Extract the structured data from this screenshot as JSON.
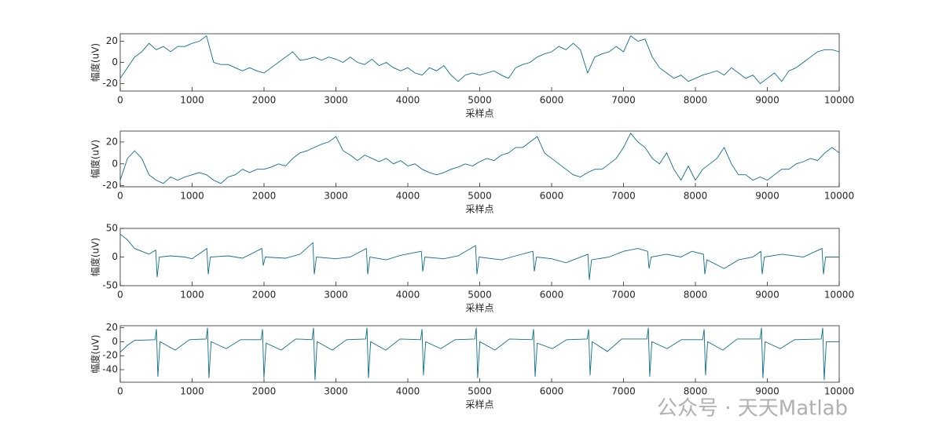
{
  "watermark": "公众号 · 天天Matlab",
  "chart_data": [
    {
      "type": "line",
      "xlabel": "采样点",
      "ylabel": "幅度(uV)",
      "color": "#0e6e8c",
      "xlim": [
        0,
        10000
      ],
      "xticks": [
        0,
        1000,
        2000,
        3000,
        4000,
        5000,
        6000,
        7000,
        8000,
        9000,
        10000
      ],
      "ylim": [
        -27,
        27
      ],
      "yticks": [
        -20,
        0,
        20
      ],
      "x": [
        0,
        100,
        200,
        300,
        400,
        500,
        600,
        700,
        800,
        900,
        1000,
        1100,
        1200,
        1300,
        1400,
        1500,
        1600,
        1700,
        1800,
        1900,
        2000,
        2100,
        2200,
        2300,
        2400,
        2500,
        2600,
        2700,
        2800,
        2900,
        3000,
        3100,
        3200,
        3300,
        3400,
        3500,
        3600,
        3700,
        3800,
        3900,
        4000,
        4100,
        4200,
        4300,
        4400,
        4500,
        4600,
        4700,
        4800,
        4900,
        5000,
        5100,
        5200,
        5300,
        5400,
        5500,
        5600,
        5700,
        5800,
        5900,
        6000,
        6100,
        6200,
        6300,
        6400,
        6500,
        6600,
        6700,
        6800,
        6900,
        7000,
        7100,
        7200,
        7300,
        7400,
        7500,
        7600,
        7700,
        7800,
        7900,
        8000,
        8100,
        8200,
        8300,
        8400,
        8500,
        8600,
        8700,
        8800,
        8900,
        9000,
        9100,
        9200,
        9300,
        9400,
        9500,
        9600,
        9700,
        9800,
        9900,
        10000
      ],
      "values": [
        -15,
        -5,
        5,
        10,
        18,
        12,
        15,
        10,
        15,
        15,
        18,
        20,
        25,
        0,
        -2,
        -2,
        -5,
        -8,
        -5,
        -8,
        -10,
        -5,
        0,
        5,
        10,
        2,
        3,
        5,
        2,
        5,
        3,
        0,
        5,
        0,
        -2,
        3,
        -3,
        0,
        -5,
        -8,
        -5,
        -10,
        -12,
        -5,
        -8,
        -3,
        -12,
        -18,
        -12,
        -10,
        -12,
        -10,
        -8,
        -12,
        -15,
        -5,
        -2,
        0,
        5,
        8,
        10,
        15,
        12,
        18,
        12,
        -10,
        5,
        8,
        10,
        15,
        10,
        25,
        20,
        22,
        5,
        -5,
        -10,
        -15,
        -12,
        -18,
        -15,
        -12,
        -10,
        -8,
        -12,
        -5,
        -10,
        -15,
        -12,
        -20,
        -15,
        -10,
        -18,
        -8,
        -5,
        0,
        5,
        10,
        12,
        12,
        10
      ]
    },
    {
      "type": "line",
      "xlabel": "采样点",
      "ylabel": "幅度(uV)",
      "color": "#0e6e8c",
      "xlim": [
        0,
        10000
      ],
      "xticks": [
        0,
        1000,
        2000,
        3000,
        4000,
        5000,
        6000,
        7000,
        8000,
        9000,
        10000
      ],
      "ylim": [
        -21,
        30
      ],
      "yticks": [
        -20,
        0,
        20
      ],
      "x": [
        0,
        100,
        200,
        300,
        400,
        500,
        600,
        700,
        800,
        900,
        1000,
        1100,
        1200,
        1300,
        1400,
        1500,
        1600,
        1700,
        1800,
        1900,
        2000,
        2100,
        2200,
        2300,
        2400,
        2500,
        2600,
        2700,
        2800,
        2900,
        3000,
        3100,
        3200,
        3300,
        3400,
        3500,
        3600,
        3700,
        3800,
        3900,
        4000,
        4100,
        4200,
        4300,
        4400,
        4500,
        4600,
        4700,
        4800,
        4900,
        5000,
        5100,
        5200,
        5300,
        5400,
        5500,
        5600,
        5700,
        5800,
        5900,
        6000,
        6100,
        6200,
        6300,
        6400,
        6500,
        6600,
        6700,
        6800,
        6900,
        7000,
        7100,
        7200,
        7300,
        7400,
        7500,
        7600,
        7700,
        7800,
        7900,
        8000,
        8100,
        8200,
        8300,
        8400,
        8500,
        8600,
        8700,
        8800,
        8900,
        9000,
        9100,
        9200,
        9300,
        9400,
        9500,
        9600,
        9700,
        9800,
        9900,
        10000
      ],
      "values": [
        -15,
        5,
        12,
        5,
        -10,
        -15,
        -18,
        -12,
        -15,
        -12,
        -10,
        -8,
        -10,
        -15,
        -18,
        -12,
        -10,
        -5,
        -8,
        -5,
        -5,
        -3,
        0,
        -2,
        5,
        10,
        12,
        15,
        18,
        20,
        25,
        12,
        8,
        3,
        8,
        5,
        2,
        5,
        0,
        3,
        -2,
        0,
        -5,
        -8,
        -10,
        -8,
        -5,
        -3,
        0,
        -2,
        2,
        5,
        3,
        8,
        10,
        15,
        15,
        20,
        25,
        10,
        5,
        0,
        -5,
        -10,
        -12,
        -8,
        -5,
        -5,
        0,
        5,
        15,
        28,
        20,
        15,
        5,
        0,
        10,
        -5,
        -15,
        -2,
        -15,
        -5,
        0,
        5,
        15,
        0,
        -10,
        -10,
        -15,
        -12,
        -15,
        -10,
        -5,
        -5,
        0,
        2,
        5,
        3,
        10,
        15,
        10
      ]
    },
    {
      "type": "line",
      "xlabel": "采样点",
      "ylabel": "幅度(uV)",
      "color": "#0e6e8c",
      "xlim": [
        0,
        10000
      ],
      "xticks": [
        0,
        1000,
        2000,
        3000,
        4000,
        5000,
        6000,
        7000,
        8000,
        9000,
        10000
      ],
      "ylim": [
        -50,
        50
      ],
      "yticks": [
        -50,
        0,
        50
      ],
      "x": [
        0,
        100,
        200,
        300,
        400,
        494,
        514,
        544,
        700,
        900,
        1000,
        1204,
        1224,
        1254,
        1500,
        1700,
        1969,
        1989,
        2019,
        2300,
        2500,
        2679,
        2699,
        2729,
        3000,
        3200,
        3423,
        3443,
        3473,
        3700,
        3900,
        4188,
        4208,
        4238,
        4500,
        4700,
        4942,
        4962,
        4992,
        5300,
        5500,
        5740,
        5760,
        5790,
        6000,
        6200,
        6505,
        6525,
        6555,
        6800,
        7000,
        7200,
        7335,
        7355,
        7385,
        7600,
        7800,
        7950,
        8111,
        8131,
        8161,
        8400,
        8600,
        8800,
        8909,
        8929,
        8959,
        9200,
        9500,
        9761,
        9781,
        9811,
        10000
      ],
      "values": [
        40,
        30,
        15,
        10,
        5,
        12,
        -35,
        0,
        2,
        0,
        -3,
        15,
        -30,
        0,
        2,
        -2,
        15,
        -15,
        0,
        -2,
        5,
        25,
        -30,
        0,
        -3,
        0,
        15,
        -30,
        0,
        -5,
        3,
        10,
        -25,
        0,
        -3,
        2,
        20,
        -30,
        0,
        -5,
        2,
        10,
        -25,
        0,
        -3,
        -10,
        5,
        -40,
        -5,
        0,
        10,
        15,
        10,
        -20,
        0,
        5,
        0,
        10,
        5,
        -30,
        -5,
        -20,
        -5,
        0,
        10,
        -30,
        0,
        5,
        0,
        15,
        -30,
        0,
        0
      ]
    },
    {
      "type": "line",
      "xlabel": "采样点",
      "ylabel": "幅度(uV)",
      "color": "#0e6e8c",
      "xlim": [
        0,
        10000
      ],
      "xticks": [
        0,
        1000,
        2000,
        3000,
        4000,
        5000,
        6000,
        7000,
        8000,
        9000,
        10000
      ],
      "ylim": [
        -58,
        23
      ],
      "yticks": [
        -40,
        -20,
        0,
        20
      ],
      "x": [
        0,
        100,
        200,
        484,
        504,
        524,
        554,
        764,
        964,
        1194,
        1214,
        1234,
        1264,
        1474,
        1674,
        1959,
        1979,
        1999,
        2029,
        2239,
        2439,
        2669,
        2689,
        2709,
        2739,
        2949,
        3149,
        3413,
        3433,
        3453,
        3483,
        3693,
        3893,
        4178,
        4198,
        4218,
        4248,
        4458,
        4658,
        4932,
        4952,
        4972,
        5002,
        5212,
        5412,
        5730,
        5750,
        5770,
        5800,
        6010,
        6210,
        6495,
        6515,
        6535,
        6565,
        6775,
        6975,
        7325,
        7345,
        7365,
        7395,
        7605,
        7805,
        8101,
        8121,
        8141,
        8171,
        8381,
        8581,
        8899,
        8919,
        8939,
        8969,
        9179,
        9379,
        9751,
        9771,
        9791,
        9821,
        10000
      ],
      "values": [
        -15,
        -5,
        2,
        3,
        18,
        -50,
        0,
        -12,
        3,
        4,
        20,
        -52,
        0,
        -10,
        3,
        3,
        18,
        -52,
        -2,
        -12,
        4,
        3,
        20,
        -55,
        0,
        -12,
        3,
        4,
        20,
        -52,
        0,
        -12,
        4,
        3,
        18,
        -48,
        0,
        -10,
        3,
        4,
        20,
        -52,
        0,
        -12,
        4,
        3,
        18,
        -50,
        -2,
        -10,
        3,
        4,
        18,
        -48,
        0,
        -14,
        4,
        4,
        20,
        -50,
        0,
        -10,
        3,
        3,
        18,
        -48,
        0,
        -12,
        4,
        4,
        20,
        -52,
        0,
        -10,
        3,
        4,
        20,
        -55,
        0,
        0
      ]
    }
  ]
}
